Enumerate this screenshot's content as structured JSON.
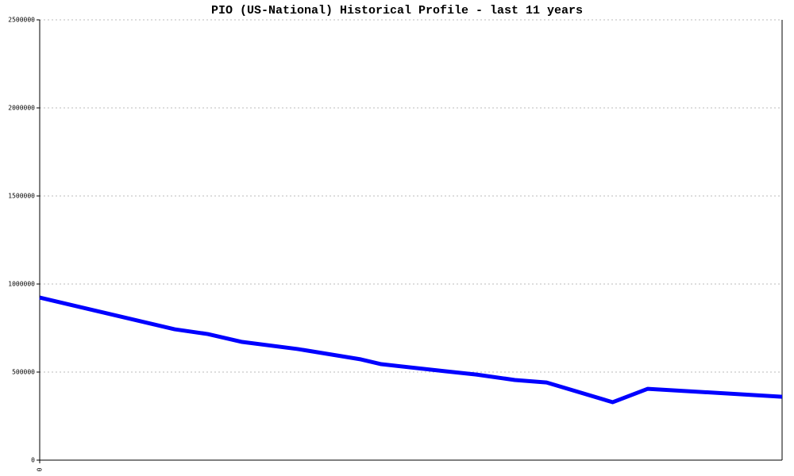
{
  "chart_data": {
    "type": "line",
    "title": "PIO (US-National) Historical Profile - last 11 years",
    "x": [
      0,
      2.0,
      2.49,
      3.0,
      3.82,
      4.76,
      5.06,
      6.0,
      6.47,
      7.04,
      7.51,
      8.49,
      9.01,
      11
    ],
    "series": [
      {
        "name": "PIO",
        "color": "#0000ff",
        "values": [
          923000,
          743000,
          716000,
          671000,
          631000,
          572000,
          545000,
          505000,
          486000,
          455000,
          441000,
          329000,
          405000,
          360000
        ]
      }
    ],
    "xlim": [
      0,
      11
    ],
    "xticks": [
      0
    ],
    "ylim": [
      0,
      2500000
    ],
    "yticks": [
      0,
      500000,
      1000000,
      1500000,
      2000000,
      2500000
    ],
    "grid": true
  }
}
